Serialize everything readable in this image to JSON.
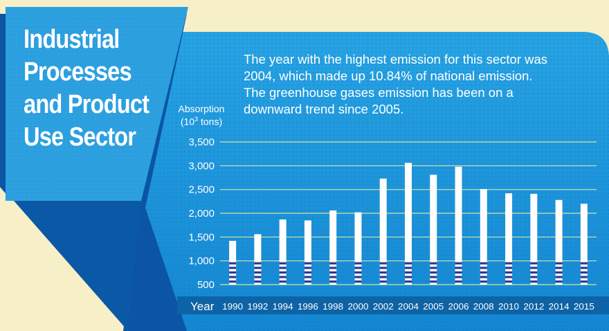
{
  "title_lines": [
    "Industrial",
    "Processes",
    "and Product",
    "Use Sector"
  ],
  "description_lines": [
    "The year with the highest emission for this sector was",
    "2004, which made up 10.84% of national emission.",
    "The greenhouse gases emission has been on a",
    "downward trend since 2005."
  ],
  "colors": {
    "background": "#f7efc8",
    "panel": "#1a93d8",
    "panel_dark": "#0c58a8",
    "bar": "#ffffff",
    "bar_stripe": "#2d3a8e",
    "grid": "#d6e6a0",
    "year_band": "#0d63a6"
  },
  "chart_data": {
    "type": "bar",
    "ylabel_line1": "Absorption",
    "ylabel_line2_prefix": "(10",
    "ylabel_sup": "3",
    "ylabel_line2_suffix": " tons)",
    "xlabel": "Year",
    "ylim": [
      500,
      3500
    ],
    "yticks": [
      "3,500",
      "3,000",
      "2,500",
      "2,000",
      "1,500",
      "1,000",
      "500"
    ],
    "ytick_values": [
      3500,
      3000,
      2500,
      2000,
      1500,
      1000,
      500
    ],
    "categories": [
      "1990",
      "1992",
      "1994",
      "1996",
      "1998",
      "2000",
      "2002",
      "2004",
      "2005",
      "2006",
      "2008",
      "2010",
      "2012",
      "2014",
      "2015"
    ],
    "values": [
      1420,
      1560,
      1870,
      1850,
      2060,
      2020,
      2730,
      3060,
      2810,
      2980,
      2510,
      2420,
      2410,
      2280,
      2200
    ],
    "grid": true
  }
}
